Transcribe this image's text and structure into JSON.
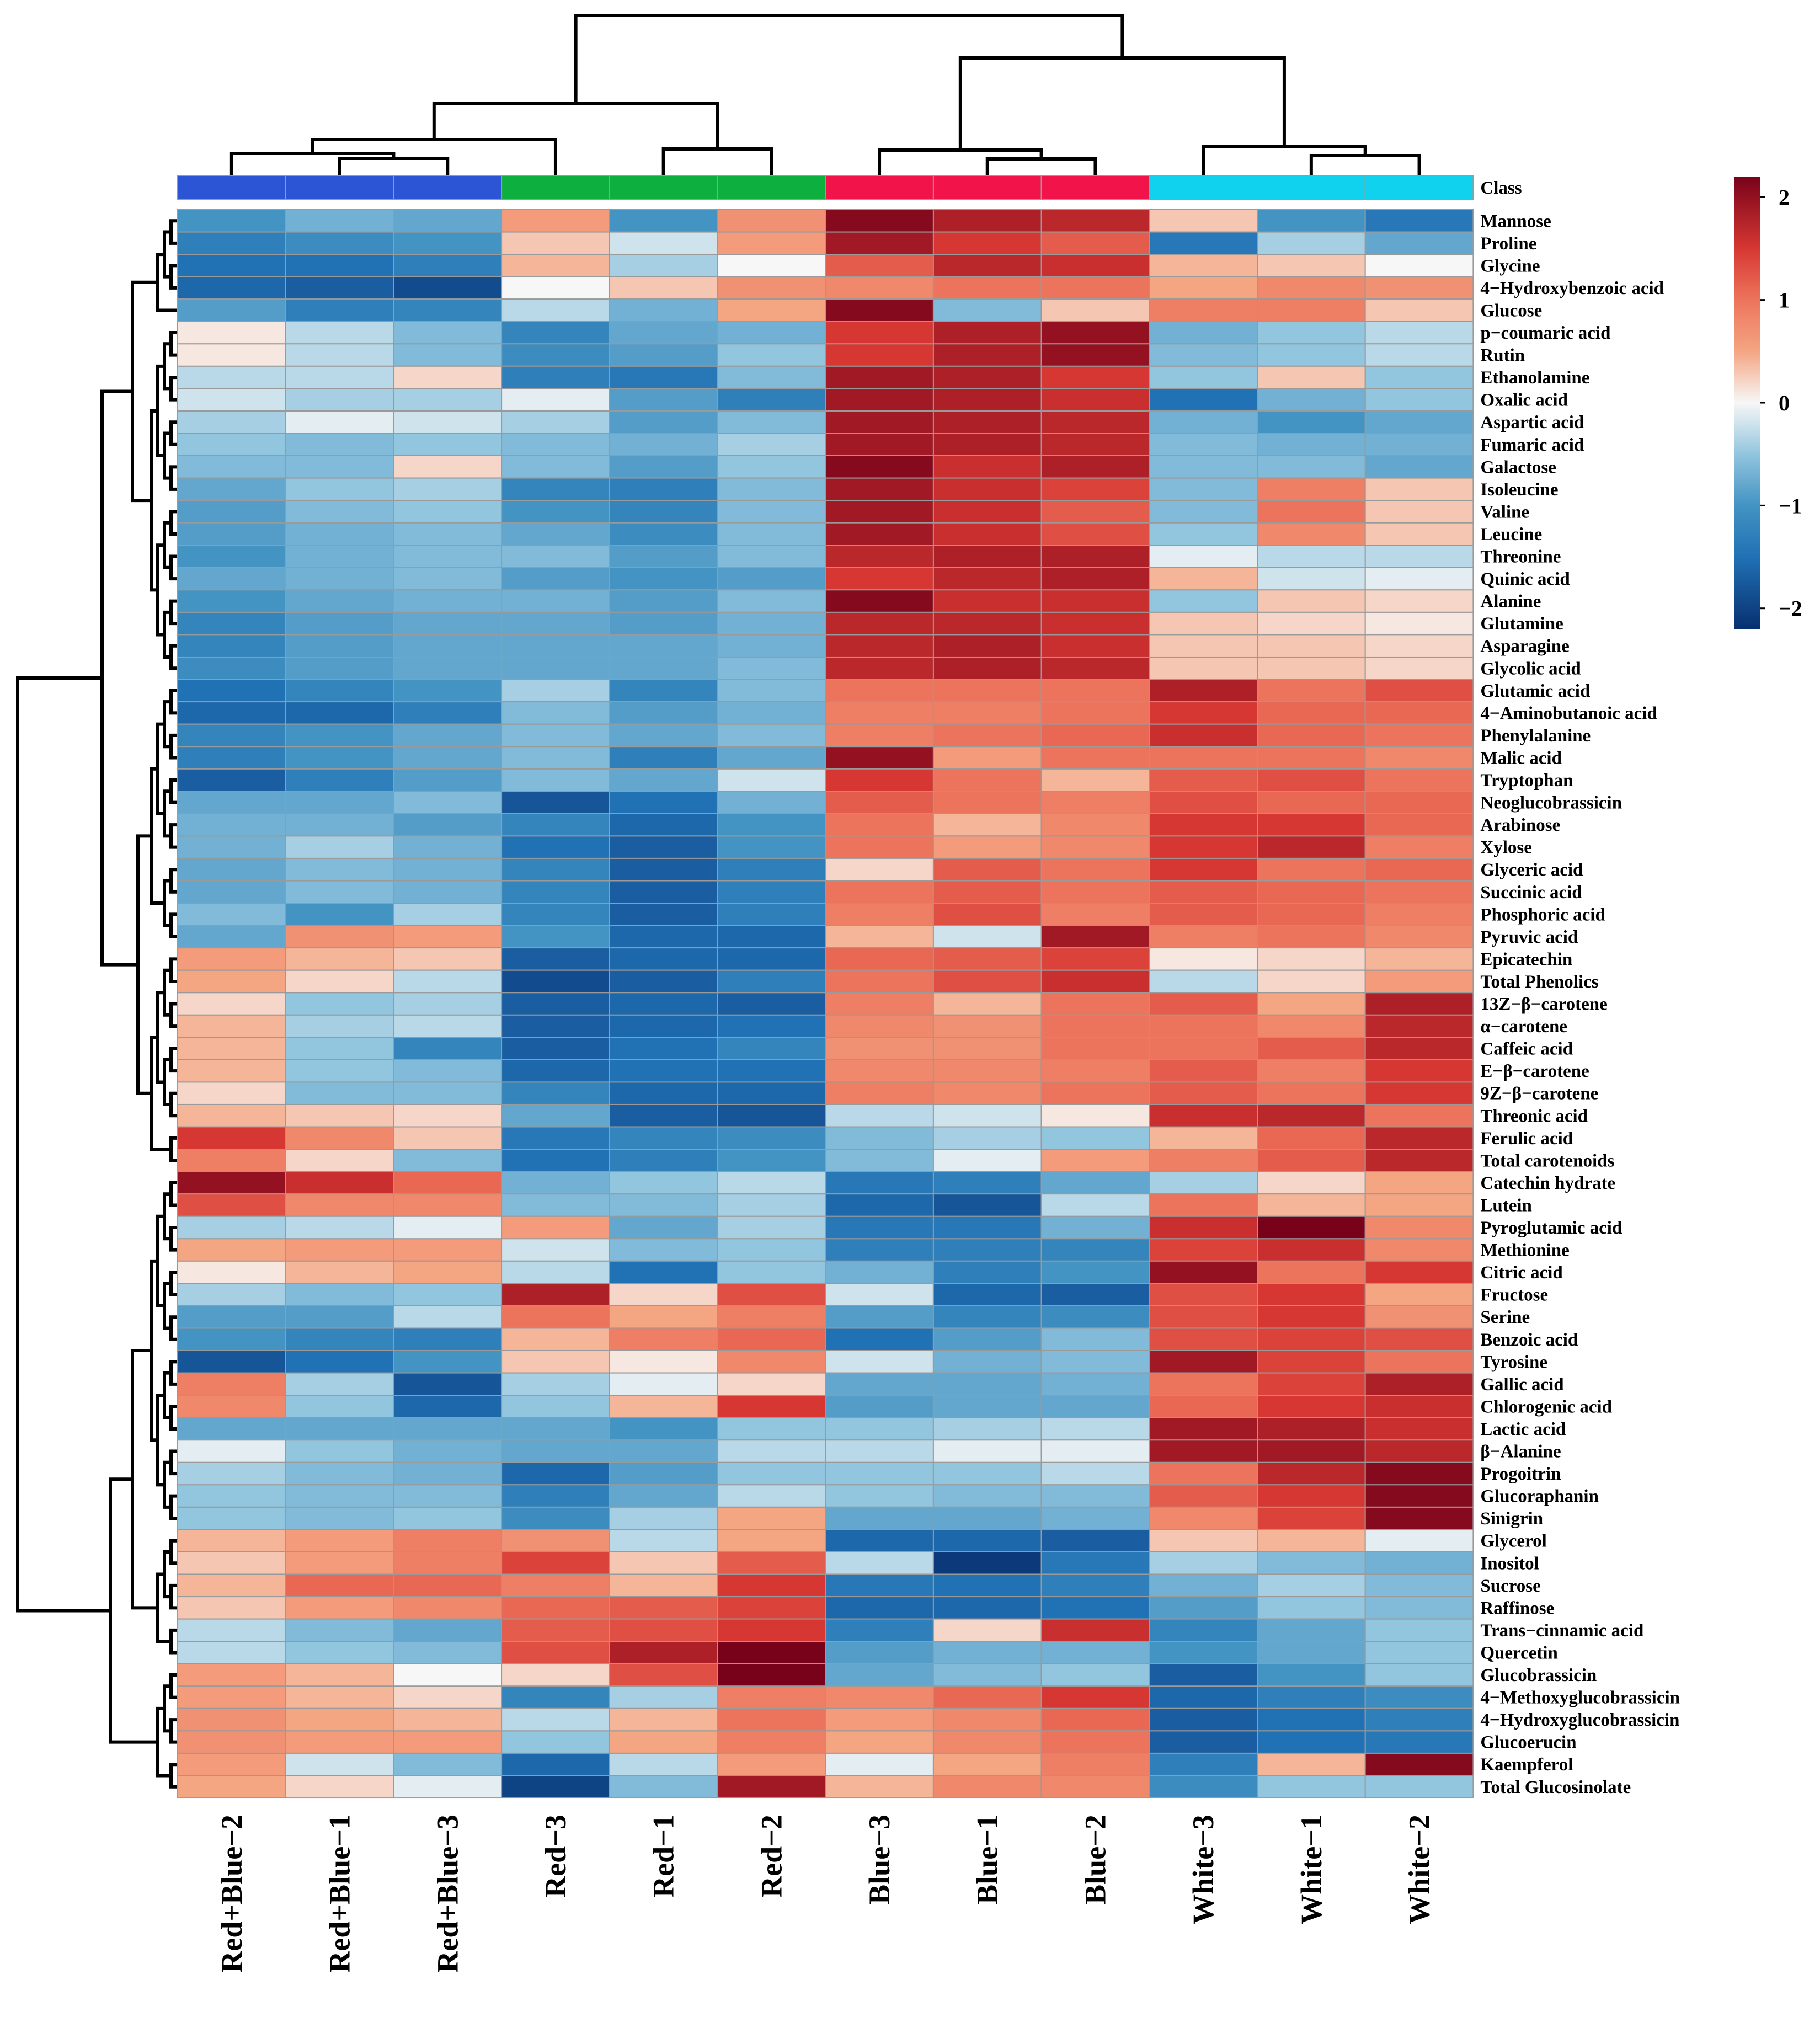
{
  "chart_data": {
    "type": "heatmap",
    "title": "",
    "class_label": "Class",
    "columns": [
      "Red+Blue−2",
      "Red+Blue−1",
      "Red+Blue−3",
      "Red−3",
      "Red−1",
      "Red−2",
      "Blue−3",
      "Blue−1",
      "Blue−2",
      "White−3",
      "White−1",
      "White−2"
    ],
    "column_groups": [
      {
        "name": "Red+Blue",
        "color": "#2c55d6"
      },
      {
        "name": "Red+Blue",
        "color": "#2c55d6"
      },
      {
        "name": "Red+Blue",
        "color": "#2c55d6"
      },
      {
        "name": "Red",
        "color": "#0db03f"
      },
      {
        "name": "Red",
        "color": "#0db03f"
      },
      {
        "name": "Red",
        "color": "#0db03f"
      },
      {
        "name": "Blue",
        "color": "#f2134a"
      },
      {
        "name": "Blue",
        "color": "#f2134a"
      },
      {
        "name": "Blue",
        "color": "#f2134a"
      },
      {
        "name": "White",
        "color": "#11d2ee"
      },
      {
        "name": "White",
        "color": "#11d2ee"
      },
      {
        "name": "White",
        "color": "#11d2ee"
      }
    ],
    "rows": [
      "Mannose",
      "Proline",
      "Glycine",
      "4−Hydroxybenzoic acid",
      "Glucose",
      "p−coumaric acid",
      "Rutin",
      "Ethanolamine",
      "Oxalic acid",
      "Aspartic acid",
      "Fumaric acid",
      "Galactose",
      "Isoleucine",
      "Valine",
      "Leucine",
      "Threonine",
      "Quinic acid",
      "Alanine",
      "Glutamine",
      "Asparagine",
      "Glycolic acid",
      "Glutamic acid",
      "4−Aminobutanoic acid",
      "Phenylalanine",
      "Malic acid",
      "Tryptophan",
      "Neoglucobrassicin",
      "Arabinose",
      "Xylose",
      "Glyceric acid",
      "Succinic acid",
      "Phosphoric acid",
      "Pyruvic acid",
      "Epicatechin",
      "Total Phenolics",
      "13Z−β−carotene",
      "α−carotene",
      "Caffeic acid",
      "E−β−carotene",
      "9Z−β−carotene",
      "Threonic acid",
      "Ferulic acid",
      "Total carotenoids",
      "Catechin hydrate",
      "Lutein",
      "Pyroglutamic acid",
      "Methionine",
      "Citric acid",
      "Fructose",
      "Serine",
      "Benzoic acid",
      "Tyrosine",
      "Gallic acid",
      "Chlorogenic acid",
      "Lactic acid",
      "β−Alanine",
      "Progoitrin",
      "Glucoraphanin",
      "Sinigrin",
      "Glycerol",
      "Inositol",
      "Sucrose",
      "Raffinose",
      "Trans−cinnamic acid",
      "Quercetin",
      "Glucobrassicin",
      "4−Methoxyglucobrassicin",
      "4−Hydroxyglucobrassicin",
      "Glucoerucin",
      "Kaempferol",
      "Total Glucosinolate"
    ],
    "values": [
      [
        -1.0,
        -0.7,
        -0.8,
        0.6,
        -1.0,
        0.7,
        2.1,
        1.8,
        1.7,
        0.3,
        -1.0,
        -1.4
      ],
      [
        -1.3,
        -1.1,
        -1.0,
        0.3,
        -0.2,
        0.6,
        1.9,
        1.5,
        1.2,
        -1.4,
        -0.4,
        -0.8
      ],
      [
        -1.5,
        -1.5,
        -1.3,
        0.4,
        -0.4,
        0.0,
        1.2,
        1.7,
        1.6,
        0.4,
        0.3,
        0.0
      ],
      [
        -1.6,
        -1.7,
        -1.9,
        0.0,
        0.3,
        0.7,
        0.8,
        1.0,
        1.0,
        0.5,
        0.8,
        0.7
      ],
      [
        -0.9,
        -1.3,
        -1.2,
        -0.3,
        -0.7,
        0.5,
        2.1,
        -0.6,
        0.3,
        0.9,
        0.9,
        0.3
      ],
      [
        0.1,
        -0.3,
        -0.6,
        -1.2,
        -0.8,
        -0.7,
        1.5,
        1.8,
        2.0,
        -0.7,
        -0.5,
        -0.3
      ],
      [
        0.1,
        -0.3,
        -0.6,
        -1.1,
        -0.9,
        -0.5,
        1.5,
        1.8,
        2.0,
        -0.6,
        -0.5,
        -0.3
      ],
      [
        -0.3,
        -0.3,
        0.2,
        -1.3,
        -1.4,
        -0.6,
        1.9,
        1.8,
        1.5,
        -0.5,
        0.3,
        -0.5
      ],
      [
        -0.2,
        -0.4,
        -0.4,
        -0.1,
        -0.9,
        -1.3,
        1.9,
        1.8,
        1.6,
        -1.5,
        -0.7,
        -0.5
      ],
      [
        -0.4,
        -0.1,
        -0.2,
        -0.4,
        -0.9,
        -0.6,
        1.9,
        1.8,
        1.7,
        -0.7,
        -1.0,
        -0.8
      ],
      [
        -0.5,
        -0.6,
        -0.5,
        -0.6,
        -0.7,
        -0.4,
        1.9,
        1.8,
        1.7,
        -0.6,
        -0.7,
        -0.7
      ],
      [
        -0.6,
        -0.6,
        0.2,
        -0.6,
        -0.9,
        -0.5,
        2.1,
        1.6,
        1.8,
        -0.6,
        -0.6,
        -0.8
      ],
      [
        -0.8,
        -0.5,
        -0.4,
        -1.2,
        -1.3,
        -0.6,
        1.9,
        1.6,
        1.4,
        -0.6,
        0.9,
        0.3
      ],
      [
        -0.9,
        -0.6,
        -0.5,
        -1.0,
        -1.2,
        -0.6,
        1.9,
        1.6,
        1.2,
        -0.6,
        1.0,
        0.3
      ],
      [
        -0.9,
        -0.7,
        -0.6,
        -0.8,
        -1.1,
        -0.6,
        1.9,
        1.6,
        1.3,
        -0.5,
        0.8,
        0.3
      ],
      [
        -1.0,
        -0.7,
        -0.6,
        -0.6,
        -0.9,
        -0.6,
        1.7,
        1.8,
        1.8,
        -0.1,
        -0.3,
        -0.3
      ],
      [
        -0.8,
        -0.7,
        -0.6,
        -0.9,
        -1.0,
        -0.9,
        1.5,
        1.7,
        1.8,
        0.4,
        -0.2,
        -0.1
      ],
      [
        -1.0,
        -0.8,
        -0.7,
        -0.7,
        -0.9,
        -0.6,
        2.1,
        1.6,
        1.6,
        -0.5,
        0.3,
        0.2
      ],
      [
        -1.2,
        -0.9,
        -0.8,
        -0.8,
        -0.9,
        -0.7,
        1.7,
        1.7,
        1.6,
        0.3,
        0.2,
        0.1
      ],
      [
        -1.2,
        -0.9,
        -0.8,
        -0.8,
        -0.8,
        -0.7,
        1.7,
        1.8,
        1.6,
        0.3,
        0.3,
        0.2
      ],
      [
        -1.1,
        -0.9,
        -0.8,
        -0.8,
        -0.8,
        -0.6,
        1.7,
        1.8,
        1.7,
        0.3,
        0.3,
        0.2
      ],
      [
        -1.5,
        -1.2,
        -1.0,
        -0.4,
        -1.2,
        -0.6,
        1.0,
        1.0,
        1.0,
        1.8,
        1.0,
        1.3
      ],
      [
        -1.6,
        -1.6,
        -1.3,
        -0.6,
        -0.9,
        -0.7,
        0.9,
        0.9,
        1.0,
        1.5,
        1.1,
        1.1
      ],
      [
        -1.2,
        -1.0,
        -0.8,
        -0.6,
        -0.8,
        -0.6,
        0.9,
        1.0,
        1.1,
        1.6,
        1.1,
        1.0
      ],
      [
        -1.3,
        -1.0,
        -0.8,
        -0.6,
        -1.3,
        -0.8,
        2.0,
        0.6,
        1.0,
        1.0,
        1.0,
        0.8
      ],
      [
        -1.7,
        -1.3,
        -0.9,
        -0.6,
        -0.8,
        -0.2,
        1.5,
        1.0,
        0.4,
        1.2,
        1.3,
        1.0
      ],
      [
        -0.8,
        -0.8,
        -0.6,
        -1.8,
        -1.5,
        -0.7,
        1.2,
        1.0,
        0.9,
        1.3,
        1.1,
        1.1
      ],
      [
        -0.7,
        -0.7,
        -0.9,
        -1.2,
        -1.6,
        -1.0,
        1.0,
        0.4,
        0.8,
        1.5,
        1.5,
        1.1
      ],
      [
        -0.7,
        -0.4,
        -0.7,
        -1.5,
        -1.7,
        -1.0,
        1.0,
        0.6,
        0.8,
        1.5,
        1.7,
        0.9
      ],
      [
        -0.8,
        -0.6,
        -0.7,
        -1.2,
        -1.7,
        -1.3,
        0.2,
        1.2,
        1.0,
        1.5,
        1.0,
        1.1
      ],
      [
        -0.8,
        -0.6,
        -0.7,
        -1.2,
        -1.7,
        -1.3,
        1.0,
        1.2,
        1.0,
        1.2,
        1.1,
        1.0
      ],
      [
        -0.6,
        -1.0,
        -0.4,
        -1.2,
        -1.7,
        -1.3,
        0.9,
        1.3,
        0.9,
        1.2,
        1.1,
        0.9
      ],
      [
        -0.8,
        0.7,
        0.6,
        -1.0,
        -1.6,
        -1.6,
        0.4,
        -0.2,
        1.9,
        0.9,
        1.0,
        0.8
      ],
      [
        0.6,
        0.4,
        0.3,
        -1.7,
        -1.6,
        -1.6,
        1.1,
        1.2,
        1.4,
        0.1,
        0.2,
        0.4
      ],
      [
        0.5,
        0.2,
        -0.3,
        -1.9,
        -1.7,
        -1.3,
        1.0,
        1.3,
        1.6,
        -0.3,
        0.2,
        0.6
      ],
      [
        0.2,
        -0.5,
        -0.4,
        -1.7,
        -1.6,
        -1.7,
        0.9,
        0.4,
        1.0,
        1.2,
        0.5,
        1.8
      ],
      [
        0.4,
        -0.4,
        -0.3,
        -1.7,
        -1.6,
        -1.5,
        0.8,
        0.7,
        1.0,
        1.0,
        0.8,
        1.7
      ],
      [
        0.4,
        -0.5,
        -1.2,
        -1.7,
        -1.5,
        -1.2,
        0.7,
        0.7,
        1.0,
        1.0,
        1.2,
        1.7
      ],
      [
        0.4,
        -0.5,
        -0.6,
        -1.6,
        -1.5,
        -1.5,
        0.8,
        0.8,
        0.9,
        1.2,
        0.9,
        1.5
      ],
      [
        0.2,
        -0.6,
        -0.6,
        -1.2,
        -1.6,
        -1.6,
        0.9,
        0.8,
        1.0,
        1.2,
        1.0,
        1.5
      ],
      [
        0.4,
        0.3,
        0.2,
        -0.8,
        -1.7,
        -1.8,
        -0.3,
        -0.2,
        0.1,
        1.6,
        1.7,
        1.0
      ],
      [
        1.5,
        0.8,
        0.3,
        -1.4,
        -1.2,
        -1.1,
        -0.6,
        -0.4,
        -0.5,
        0.4,
        1.1,
        1.7
      ],
      [
        0.9,
        0.2,
        -0.6,
        -1.5,
        -1.3,
        -1.0,
        -0.6,
        -0.1,
        0.6,
        0.9,
        1.2,
        1.7
      ],
      [
        2.0,
        1.6,
        1.1,
        -0.7,
        -0.5,
        -0.3,
        -1.4,
        -1.3,
        -0.8,
        -0.4,
        0.2,
        0.5
      ],
      [
        1.3,
        0.8,
        0.8,
        -0.6,
        -0.6,
        -0.4,
        -1.6,
        -1.8,
        -0.3,
        1.0,
        0.4,
        0.5
      ],
      [
        -0.4,
        -0.3,
        -0.1,
        0.6,
        -0.8,
        -0.4,
        -1.4,
        -1.4,
        -0.7,
        1.6,
        2.2,
        0.8
      ],
      [
        0.5,
        0.6,
        0.6,
        -0.2,
        -0.6,
        -0.5,
        -1.3,
        -1.3,
        -1.2,
        1.4,
        1.6,
        0.8
      ],
      [
        0.1,
        0.4,
        0.5,
        -0.3,
        -1.5,
        -0.5,
        -0.7,
        -1.3,
        -1.0,
        2.0,
        1.0,
        1.5
      ],
      [
        -0.4,
        -0.6,
        -0.5,
        1.8,
        0.2,
        1.3,
        -0.2,
        -1.6,
        -1.7,
        1.3,
        1.5,
        0.5
      ],
      [
        -0.9,
        -0.9,
        -0.3,
        1.0,
        0.5,
        0.9,
        -0.9,
        -1.2,
        -1.1,
        1.3,
        1.5,
        0.7
      ],
      [
        -1.0,
        -1.2,
        -1.3,
        0.4,
        0.9,
        1.1,
        -1.5,
        -0.9,
        -0.6,
        1.3,
        1.4,
        1.3
      ],
      [
        -1.8,
        -1.5,
        -1.0,
        0.3,
        0.1,
        0.8,
        -0.2,
        -0.7,
        -0.6,
        1.9,
        1.4,
        1.0
      ],
      [
        0.9,
        -0.4,
        -1.8,
        -0.4,
        -0.1,
        0.2,
        -0.8,
        -0.8,
        -0.7,
        1.0,
        1.4,
        1.8
      ],
      [
        0.8,
        -0.5,
        -1.6,
        -0.5,
        0.4,
        1.5,
        -0.9,
        -0.8,
        -0.8,
        1.1,
        1.5,
        1.6
      ],
      [
        -0.8,
        -0.8,
        -0.8,
        -0.8,
        -1.0,
        -0.5,
        -0.5,
        -0.4,
        -0.3,
        1.9,
        1.8,
        1.6
      ],
      [
        -0.1,
        -0.5,
        -0.7,
        -0.8,
        -0.8,
        -0.3,
        -0.3,
        -0.1,
        -0.1,
        1.9,
        1.9,
        1.7
      ],
      [
        -0.4,
        -0.6,
        -0.7,
        -1.6,
        -0.9,
        -0.5,
        -0.5,
        -0.5,
        -0.3,
        1.0,
        1.7,
        2.1
      ],
      [
        -0.5,
        -0.6,
        -0.6,
        -1.3,
        -0.8,
        -0.3,
        -0.5,
        -0.6,
        -0.6,
        1.2,
        1.5,
        2.1
      ],
      [
        -0.5,
        -0.6,
        -0.5,
        -1.1,
        -0.4,
        0.5,
        -0.8,
        -0.8,
        -0.7,
        0.8,
        1.4,
        2.1
      ],
      [
        0.4,
        0.6,
        0.9,
        0.7,
        -0.3,
        0.5,
        -1.6,
        -1.6,
        -1.7,
        0.3,
        0.4,
        -0.1
      ],
      [
        0.3,
        0.6,
        0.9,
        1.4,
        0.3,
        1.2,
        -0.3,
        -2.1,
        -1.4,
        -0.4,
        -0.6,
        -0.7
      ],
      [
        0.4,
        1.1,
        1.1,
        0.9,
        0.4,
        1.5,
        -1.4,
        -1.5,
        -1.3,
        -0.7,
        -0.4,
        -0.6
      ],
      [
        0.3,
        0.6,
        0.8,
        1.1,
        1.2,
        1.4,
        -1.6,
        -1.6,
        -1.5,
        -0.9,
        -0.5,
        -0.6
      ],
      [
        -0.3,
        -0.6,
        -0.8,
        1.2,
        1.3,
        1.5,
        -1.3,
        0.2,
        1.6,
        -1.2,
        -0.8,
        -0.5
      ],
      [
        -0.3,
        -0.5,
        -0.6,
        1.3,
        1.8,
        2.2,
        -0.9,
        -0.7,
        -0.7,
        -1.0,
        -0.8,
        -0.5
      ],
      [
        0.6,
        0.4,
        0.0,
        0.2,
        1.3,
        2.2,
        -0.8,
        -0.6,
        -0.5,
        -1.7,
        -1.0,
        -0.5
      ],
      [
        0.6,
        0.4,
        0.2,
        -1.2,
        -0.4,
        0.9,
        0.8,
        1.1,
        1.5,
        -1.6,
        -1.3,
        -1.1
      ],
      [
        0.7,
        0.5,
        0.4,
        -0.3,
        0.4,
        1.0,
        0.6,
        0.8,
        1.1,
        -1.7,
        -1.5,
        -1.3
      ],
      [
        0.7,
        0.6,
        0.6,
        -0.5,
        0.5,
        0.9,
        0.5,
        0.8,
        1.0,
        -1.7,
        -1.5,
        -1.4
      ],
      [
        0.6,
        -0.2,
        -0.6,
        -1.6,
        -0.3,
        0.6,
        -0.1,
        0.5,
        0.9,
        -1.3,
        0.4,
        2.1
      ],
      [
        0.5,
        0.2,
        -0.1,
        -2.0,
        -0.6,
        1.9,
        0.4,
        0.8,
        0.8,
        -1.1,
        -0.5,
        -0.5
      ]
    ],
    "scale": {
      "min": -2.2,
      "max": 2.2,
      "ticks": [
        2,
        1,
        0,
        -1,
        -2
      ],
      "tick_labels": [
        "2",
        "1",
        "0",
        "−1",
        "−2"
      ]
    },
    "legend_position": "top-right",
    "column_order_dendrogram": "((RB2,(RB1,RB3)),(R3,(R1,R2))),((B3,(B1,B2)),(W3,(W1,W2)))"
  }
}
